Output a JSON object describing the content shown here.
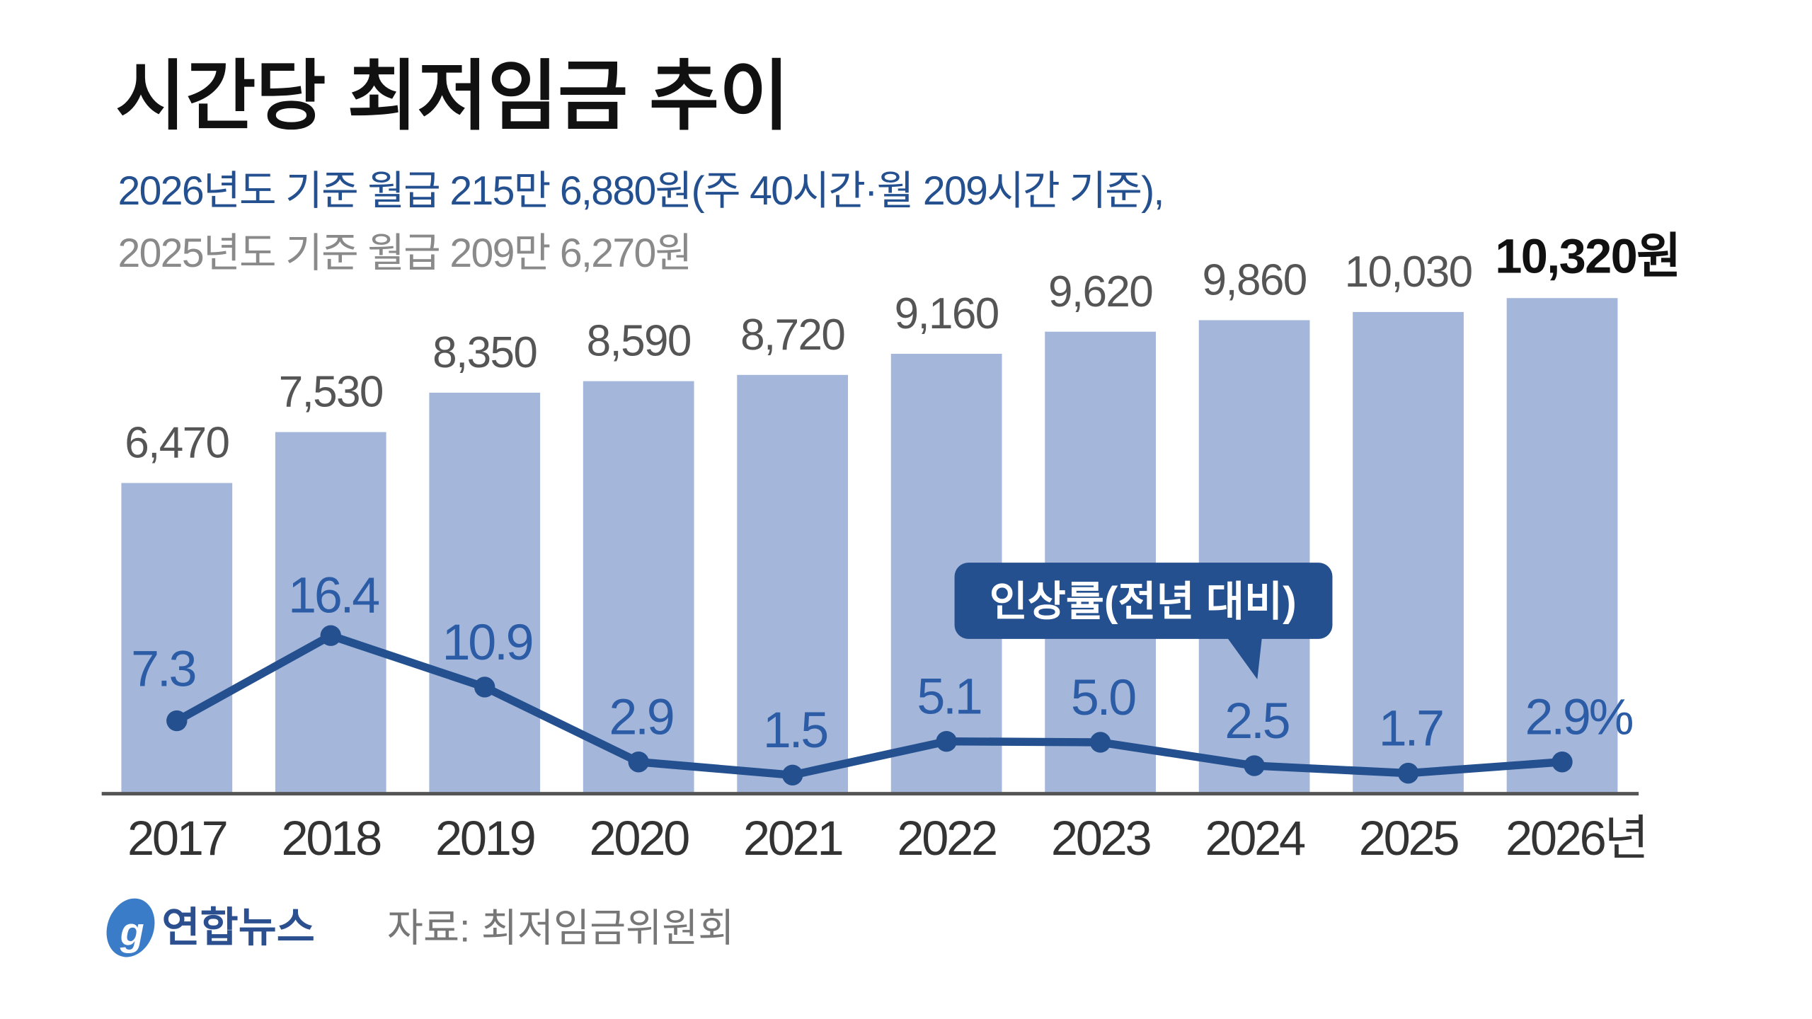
{
  "chart_data": {
    "type": "bar",
    "title": "시간당 최저임금 추이",
    "subtitle_lines": [
      "2026년도 기준 월급 215만 6,880원(주 40시간·월 209시간 기준),",
      "2025년도 기준 월급 209만 6,270원"
    ],
    "categories": [
      "2017",
      "2018",
      "2019",
      "2020",
      "2021",
      "2022",
      "2023",
      "2024",
      "2025",
      "2026년"
    ],
    "value_labels": [
      "6,470",
      "7,530",
      "8,350",
      "8,590",
      "8,720",
      "9,160",
      "9,620",
      "9,860",
      "10,030",
      "10,320원"
    ],
    "series": [
      {
        "type": "bar",
        "values": [
          6470,
          7530,
          8350,
          8590,
          8720,
          9160,
          9620,
          9860,
          10030,
          10320
        ],
        "color": "#a4b7da"
      },
      {
        "type": "line",
        "name": "인상률(전년 대비)",
        "values": [
          7.3,
          16.4,
          10.9,
          2.9,
          1.5,
          5.1,
          5.0,
          2.5,
          1.7,
          2.9
        ],
        "color": "#24508f"
      }
    ],
    "rate_labels": [
      "7.3",
      "16.4",
      "10.9",
      "2.9",
      "1.5",
      "5.1",
      "5.0",
      "2.5",
      "1.7",
      "2.9%"
    ],
    "ylim": [
      0,
      10320
    ],
    "grid": false,
    "legend": "callout near 2024"
  },
  "footer": {
    "logo": "연합뉴스",
    "source": "자료: 최저임금위원회"
  },
  "colors": {
    "bar": "#a4b7da",
    "line": "#24508f",
    "callout": "#24508f"
  }
}
